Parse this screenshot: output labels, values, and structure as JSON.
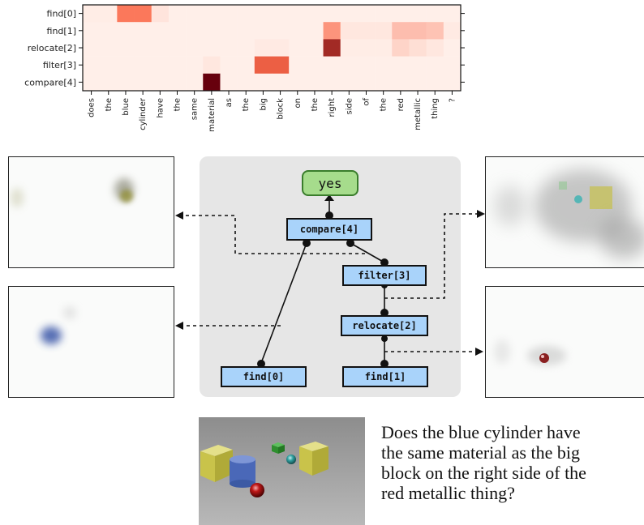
{
  "heatmap": {
    "rows": [
      "find[0]",
      "find[1]",
      "relocate[2]",
      "filter[3]",
      "compare[4]"
    ],
    "cols": [
      "does",
      "the",
      "blue",
      "cylinder",
      "have",
      "the",
      "same",
      "material",
      "as",
      "the",
      "big",
      "block",
      "on",
      "the",
      "right",
      "side",
      "of",
      "the",
      "red",
      "metallic",
      "thing",
      "?"
    ],
    "cells": [
      [
        0.03,
        0.03,
        0.45,
        0.45,
        0.06,
        0.02,
        0.02,
        0.02,
        0.02,
        0.02,
        0.02,
        0.02,
        0.02,
        0.02,
        0.02,
        0.02,
        0.02,
        0.02,
        0.02,
        0.02,
        0.02,
        0.02
      ],
      [
        0.02,
        0.02,
        0.02,
        0.02,
        0.02,
        0.02,
        0.02,
        0.02,
        0.02,
        0.02,
        0.02,
        0.02,
        0.02,
        0.02,
        0.35,
        0.05,
        0.05,
        0.05,
        0.2,
        0.2,
        0.18,
        0.04
      ],
      [
        0.02,
        0.02,
        0.02,
        0.02,
        0.02,
        0.02,
        0.02,
        0.02,
        0.02,
        0.02,
        0.04,
        0.04,
        0.02,
        0.02,
        0.8,
        0.03,
        0.03,
        0.03,
        0.12,
        0.08,
        0.05,
        0.02
      ],
      [
        0.02,
        0.02,
        0.02,
        0.02,
        0.02,
        0.02,
        0.02,
        0.05,
        0.02,
        0.02,
        0.55,
        0.55,
        0.02,
        0.02,
        0.02,
        0.02,
        0.02,
        0.02,
        0.02,
        0.02,
        0.02,
        0.02
      ],
      [
        0.02,
        0.02,
        0.02,
        0.02,
        0.02,
        0.02,
        0.02,
        1.0,
        0.02,
        0.02,
        0.02,
        0.02,
        0.02,
        0.02,
        0.02,
        0.02,
        0.02,
        0.02,
        0.02,
        0.02,
        0.02,
        0.02
      ]
    ]
  },
  "diagram": {
    "answer": "yes",
    "nodes": {
      "compare": "compare[4]",
      "filter": "filter[3]",
      "relocate": "relocate[2]",
      "find0": "find[0]",
      "find1": "find[1]"
    }
  },
  "question": {
    "lines": [
      "Does the blue cylinder have",
      "the same material as the big",
      "block on the right side of the",
      "red metallic thing?"
    ]
  },
  "colors": {
    "node_fill": "#a9d3fa",
    "answer_fill": "#a6dc8c",
    "diagram_bg": "#e6e6e6",
    "heat_high": "#67000d",
    "heat_low": "#fff5f0"
  }
}
